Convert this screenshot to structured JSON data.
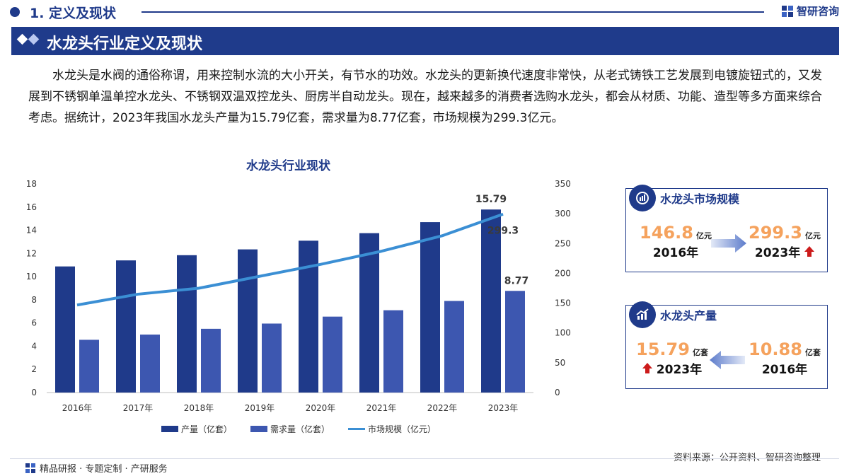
{
  "header": {
    "section_title": "1. 定义及现状",
    "brand_name": "智研咨询"
  },
  "banner": {
    "title": "水龙头行业定义及现状"
  },
  "intro": {
    "text": "水龙头是水阀的通俗称谓，用来控制水流的大小开关，有节水的功效。水龙头的更新换代速度非常快，从老式铸铁工艺发展到电镀旋钮式的，又发展到不锈钢单温单控水龙头、不锈钢双温双控龙头、厨房半自动龙头。现在，越来越多的消费者选购水龙头，都会从材质、功能、造型等多方面来综合考虑。据统计，2023年我国水龙头产量为15.79亿套，需求量为8.77亿套，市场规模为299.3亿元。"
  },
  "chart_data": {
    "type": "bar",
    "title": "水龙头行业现状",
    "categories": [
      "2016年",
      "2017年",
      "2018年",
      "2019年",
      "2020年",
      "2021年",
      "2022年",
      "2023年"
    ],
    "series": [
      {
        "name": "产量（亿套）",
        "type": "bar",
        "axis": "left",
        "color": "#1f3a8a",
        "values": [
          10.88,
          11.4,
          11.85,
          12.35,
          13.1,
          13.75,
          14.7,
          15.79
        ]
      },
      {
        "name": "需求量（亿套）",
        "type": "bar",
        "axis": "left",
        "color": "#3d57b0",
        "values": [
          4.55,
          5.0,
          5.5,
          5.95,
          6.55,
          7.1,
          7.9,
          8.77
        ]
      },
      {
        "name": "市场规模（亿元）",
        "type": "line",
        "axis": "right",
        "color": "#3b8fd4",
        "values": [
          146.8,
          165,
          175,
          195,
          215,
          237,
          263,
          299.3
        ]
      }
    ],
    "y_left": {
      "min": 0,
      "max": 18,
      "ticks": [
        0,
        2,
        4,
        6,
        8,
        10,
        12,
        14,
        16,
        18
      ]
    },
    "y_right": {
      "min": 0,
      "max": 350,
      "ticks": [
        0,
        50,
        100,
        150,
        200,
        250,
        300,
        350
      ]
    },
    "data_labels": {
      "production_last": "15.79",
      "demand_last": "8.77",
      "market_last": "299.3"
    },
    "legend_position": "bottom",
    "grid": false
  },
  "cards": {
    "market": {
      "title": "水龙头市场规模",
      "from_value": "146.8",
      "from_unit": "亿元",
      "from_year": "2016年",
      "to_value": "299.3",
      "to_unit": "亿元",
      "to_year": "2023年"
    },
    "production": {
      "title": "水龙头产量",
      "new_value": "15.79",
      "new_unit": "亿套",
      "new_year": "2023年",
      "old_value": "10.88",
      "old_unit": "亿套",
      "old_year": "2016年"
    }
  },
  "footer": {
    "left_text": "精品研报 · 专题定制 · 产研服务",
    "source": "资料来源：公开资料、智研咨询整理"
  },
  "colors": {
    "primary": "#1f3a8a",
    "accent_orange": "#f5a25d",
    "up_red": "#cc1b1b"
  }
}
